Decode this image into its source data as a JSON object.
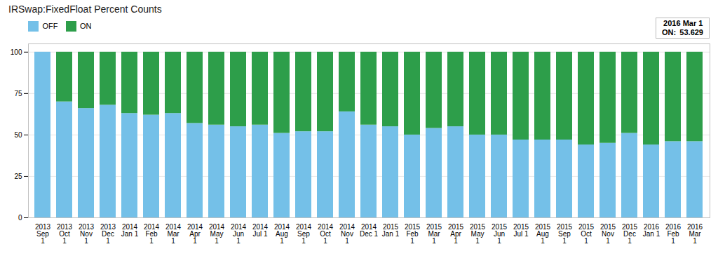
{
  "chart_data": {
    "type": "bar",
    "title": "IRSwap:FixedFloat Percent Counts",
    "categories": [
      "2013\nSep\n1",
      "2013\nOct\n1",
      "2013\nNov\n1",
      "2013\nDec\n1",
      "2014\nJan 1",
      "2014\nFeb\n1",
      "2014\nMar\n1",
      "2014\nApr\n1",
      "2014\nMay\n1",
      "2014\nJun\n1",
      "2014\nJul 1",
      "2014\nAug\n1",
      "2014\nSep\n1",
      "2014\nOct\n1",
      "2014\nNov\n1",
      "2014\nDec 1",
      "2015\nJan 1",
      "2015\nFeb\n1",
      "2015\nMar\n1",
      "2015\nApr\n1",
      "2015\nMay\n1",
      "2015\nJun\n1",
      "2015\nJul 1",
      "2015\nAug\n1",
      "2015\nSep\n1",
      "2015\nOct\n1",
      "2015\nNov\n1",
      "2015\nDec\n1",
      "2016\nJan 1",
      "2016\nFeb\n1",
      "2016\nMar\n1"
    ],
    "series": [
      {
        "name": "OFF",
        "color": "#74C0E8",
        "values": [
          100,
          70,
          66,
          68,
          63,
          62,
          63,
          57,
          56,
          55,
          56,
          51,
          52,
          52,
          64,
          56,
          55,
          50,
          54,
          55,
          50,
          50,
          47,
          47,
          47,
          44,
          45,
          51,
          44,
          46,
          46
        ]
      },
      {
        "name": "ON",
        "color": "#2D9E4A",
        "values": [
          0,
          30,
          34,
          32,
          37,
          38,
          37,
          43,
          44,
          45,
          44,
          49,
          48,
          48,
          36,
          44,
          45,
          50,
          46,
          45,
          50,
          50,
          53,
          53,
          53,
          56,
          55,
          49,
          56,
          54,
          54
        ]
      }
    ],
    "stacked": true,
    "ylim": [
      0,
      105
    ],
    "yticks": [
      0,
      25,
      50,
      75,
      100
    ],
    "grid": true,
    "legend": "upper left",
    "annotations": [
      " 2016 Mar 1\nON:  53.629"
    ]
  }
}
